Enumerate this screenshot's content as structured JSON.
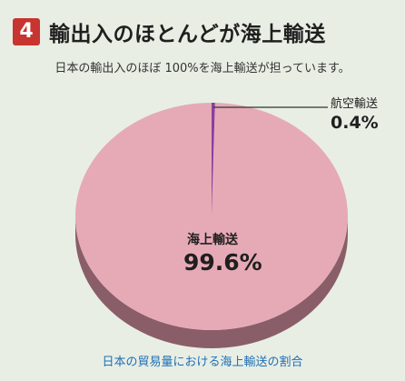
{
  "header": {
    "badge": "4",
    "title": "輸出入のほとんどが海上輸送"
  },
  "subtitle": "日本の輸出入のほぼ 100%を海上輸送が担っています。",
  "caption": "日本の貿易量における海上輸送の割合",
  "colors": {
    "badge": "#c8342f",
    "sea_slice": "#e6aab6",
    "sea_side": "#8a5e68",
    "air_slice": "#8a3fa0",
    "caption": "#1f6fb5",
    "background": "#e8eee4"
  },
  "chart_data": {
    "type": "pie",
    "title": "日本の貿易量における海上輸送の割合",
    "slices": [
      {
        "label": "海上輸送",
        "value": 99.6,
        "value_label": "99.6%"
      },
      {
        "label": "航空輸送",
        "value": 0.4,
        "value_label": "0.4%"
      }
    ],
    "style": "3d",
    "legend": "none"
  }
}
